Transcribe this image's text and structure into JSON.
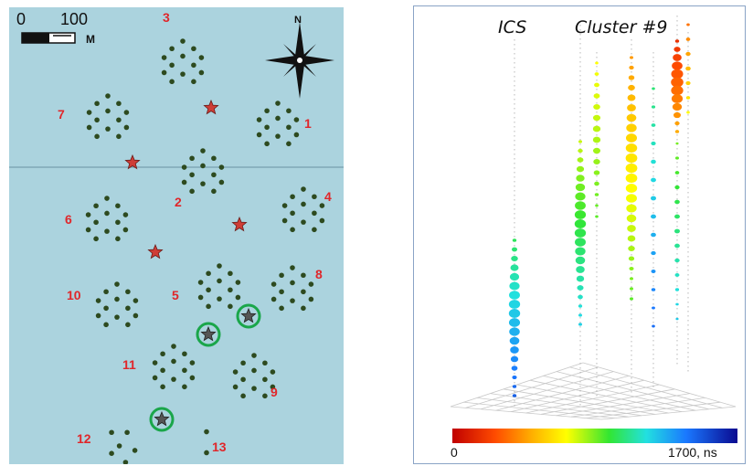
{
  "map": {
    "scale_zero": "0",
    "scale_hundred": "100",
    "scale_unit": "M",
    "compass_label": "N",
    "clusters": [
      {
        "id": "1"
      },
      {
        "id": "2"
      },
      {
        "id": "3"
      },
      {
        "id": "4"
      },
      {
        "id": "5"
      },
      {
        "id": "6"
      },
      {
        "id": "7"
      },
      {
        "id": "8"
      },
      {
        "id": "9"
      },
      {
        "id": "10"
      },
      {
        "id": "11"
      },
      {
        "id": "12"
      },
      {
        "id": "13"
      }
    ],
    "colors": {
      "water": "#abd3de",
      "cluster_label": "#e0262a",
      "sensor": "#2d4a1f",
      "star": "#cf3d36",
      "highlight_ring": "#1aa64a"
    }
  },
  "event": {
    "label_ics": "ICS",
    "label_cluster": "Cluster #9",
    "colorbar_min": "0",
    "colorbar_max": "1700, ns"
  }
}
